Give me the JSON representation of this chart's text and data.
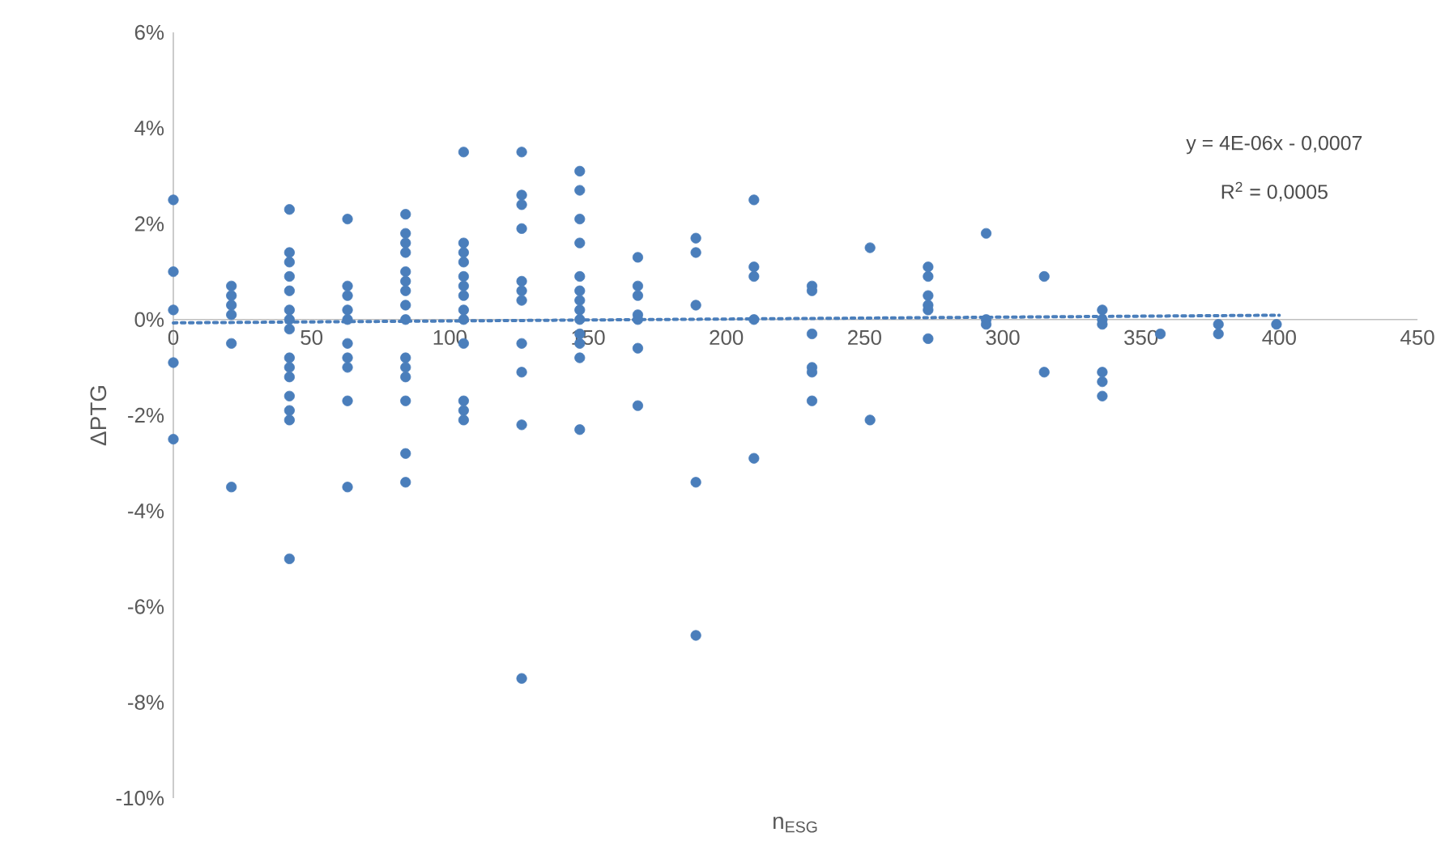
{
  "chart_data": {
    "type": "scatter",
    "xlabel": "n$_{ESG}$",
    "ylabel": "ΔPTG",
    "annotations": [
      "y = 4E-06x - 0,0007",
      "R$^{2}$ = 0,0005"
    ],
    "xlim": [
      0,
      450
    ],
    "xticks": [
      0,
      50,
      100,
      150,
      200,
      250,
      300,
      350,
      400,
      450
    ],
    "ylim": [
      -10,
      6
    ],
    "yticks": [
      {
        "value": -10,
        "label": "-10%"
      },
      {
        "value": -8,
        "label": "-8%"
      },
      {
        "value": -6,
        "label": "-6%"
      },
      {
        "value": -4,
        "label": "-4%"
      },
      {
        "value": -2,
        "label": "-2%"
      },
      {
        "value": 0,
        "label": "0%"
      },
      {
        "value": 2,
        "label": "2%"
      },
      {
        "value": 4,
        "label": "4%"
      },
      {
        "value": 6,
        "label": "6%"
      }
    ],
    "marker": "circle",
    "series": [
      {
        "color": "#4a7ebb",
        "x": [
          0,
          0,
          0,
          0,
          0,
          21,
          21,
          21,
          21,
          21,
          21,
          42,
          42,
          42,
          42,
          42,
          42,
          42,
          42,
          42,
          42,
          42,
          42,
          42,
          42,
          42,
          63,
          63,
          63,
          63,
          63,
          63,
          63,
          63,
          63,
          63,
          84,
          84,
          84,
          84,
          84,
          84,
          84,
          84,
          84,
          84,
          84,
          84,
          84,
          84,
          84,
          105,
          105,
          105,
          105,
          105,
          105,
          105,
          105,
          105,
          105,
          105,
          105,
          105,
          126,
          126,
          126,
          126,
          126,
          126,
          126,
          126,
          126,
          126,
          126,
          147,
          147,
          147,
          147,
          147,
          147,
          147,
          147,
          147,
          147,
          147,
          147,
          147,
          168,
          168,
          168,
          168,
          168,
          168,
          168,
          189,
          189,
          189,
          189,
          189,
          210,
          210,
          210,
          210,
          210,
          231,
          231,
          231,
          231,
          231,
          231,
          252,
          252,
          273,
          273,
          273,
          273,
          273,
          273,
          294,
          294,
          294,
          315,
          315,
          336,
          336,
          336,
          336,
          336,
          336,
          357,
          378,
          378,
          399
        ],
        "values": [
          2.5,
          1.0,
          0.2,
          -0.9,
          -2.5,
          0.7,
          0.5,
          0.3,
          0.1,
          -0.5,
          -3.5,
          2.3,
          1.4,
          1.2,
          0.9,
          0.6,
          0.2,
          0.0,
          -0.2,
          -0.8,
          -1.0,
          -1.2,
          -1.6,
          -1.9,
          -2.1,
          -5.0,
          2.1,
          0.7,
          0.5,
          0.2,
          0.0,
          -0.5,
          -0.8,
          -1.0,
          -1.7,
          -3.5,
          2.2,
          1.8,
          1.6,
          1.4,
          1.0,
          0.8,
          0.6,
          0.3,
          0.0,
          -0.8,
          -1.0,
          -1.2,
          -1.7,
          -2.8,
          -3.4,
          3.5,
          1.6,
          1.4,
          1.2,
          0.9,
          0.7,
          0.5,
          0.2,
          0.0,
          -0.5,
          -1.7,
          -1.9,
          -2.1,
          3.5,
          2.6,
          2.4,
          1.9,
          0.8,
          0.6,
          0.4,
          -0.5,
          -1.1,
          -2.2,
          -7.5,
          3.1,
          2.7,
          2.1,
          1.6,
          0.9,
          0.6,
          0.4,
          0.2,
          0.0,
          -0.3,
          -0.5,
          -0.8,
          -2.3,
          1.3,
          0.7,
          0.5,
          0.1,
          0.0,
          -0.6,
          -1.8,
          1.7,
          1.4,
          0.3,
          -3.4,
          -6.6,
          2.5,
          1.1,
          0.9,
          0.0,
          -2.9,
          0.7,
          0.6,
          -0.3,
          -1.0,
          -1.1,
          -1.7,
          1.5,
          -2.1,
          1.1,
          0.9,
          0.5,
          0.3,
          0.2,
          -0.4,
          1.8,
          0.0,
          -0.1,
          0.9,
          -1.1,
          0.2,
          0.0,
          -0.1,
          -1.1,
          -1.3,
          -1.6,
          -0.3,
          -0.1,
          -0.3,
          -0.1
        ]
      },
      {
        "type": "line",
        "color": "#4a7ebb",
        "line_style": "dotted",
        "marker": "none",
        "x": [
          0,
          400
        ],
        "values": [
          -0.07,
          0.09
        ]
      }
    ]
  }
}
